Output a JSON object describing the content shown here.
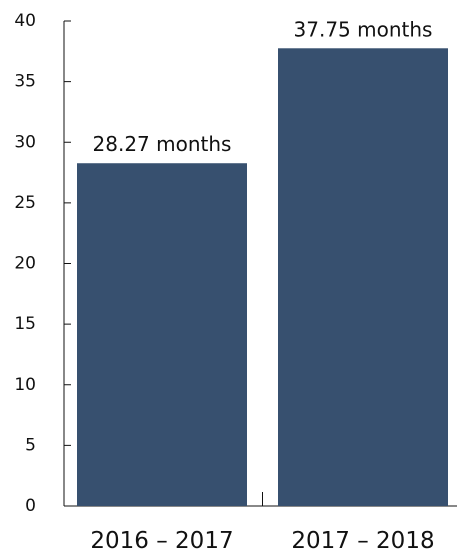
{
  "chart_data": {
    "type": "bar",
    "title": "",
    "xlabel": "",
    "ylabel": "",
    "categories": [
      "2016 – 2017",
      "2017 – 2018"
    ],
    "values": [
      28.27,
      37.75
    ],
    "data_labels": [
      "28.27 months",
      "37.75 months"
    ],
    "ylim": [
      0,
      40
    ],
    "yticks": [
      0,
      5,
      10,
      15,
      20,
      25,
      30,
      35,
      40
    ],
    "grid": false,
    "legend": "none",
    "bar_color": "#37506f"
  }
}
